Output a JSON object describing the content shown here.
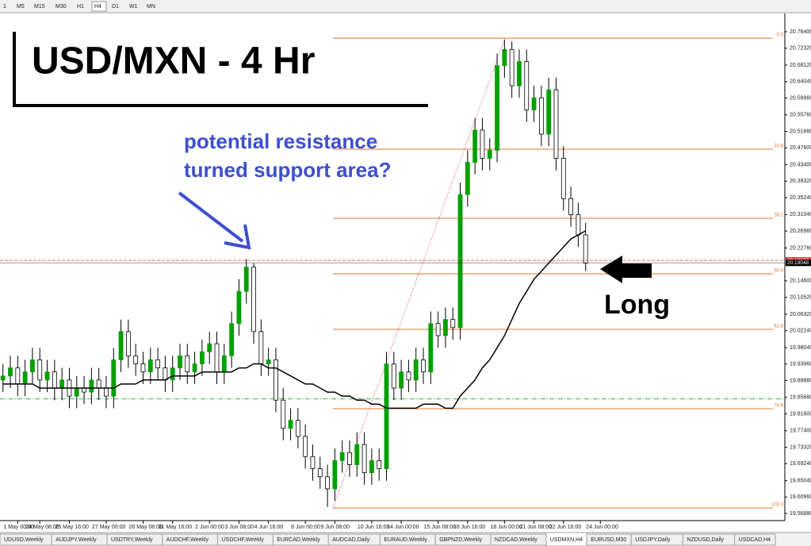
{
  "toolbar": {
    "timeframes": [
      "1",
      "M5",
      "M15",
      "M30",
      "H1",
      "H4",
      "D1",
      "W1",
      "MN"
    ],
    "active": "H4"
  },
  "chart_data": {
    "type": "candlestick",
    "title": "USD/MXN - 4 Hr",
    "annotations": {
      "resistance": [
        "potential resistance",
        "turned support area?"
      ],
      "signal": "Long"
    },
    "xlim": [
      -0.4,
      104.4
    ],
    "ylim": [
      19.5531,
      20.8093
    ],
    "xticks": [
      {
        "value": 2,
        "label": "1 May 00:00"
      },
      {
        "value": 5,
        "label": "24 May 08:00"
      },
      {
        "value": 9,
        "label": "25 May 16:00"
      },
      {
        "value": 14,
        "label": "27 May 00:00"
      },
      {
        "value": 19,
        "label": "28 May 08:00"
      },
      {
        "value": 23,
        "label": "31 May 16:00"
      },
      {
        "value": 28,
        "label": "2 Jun 00:00"
      },
      {
        "value": 32,
        "label": "3 Jun 08:00"
      },
      {
        "value": 36,
        "label": "4 Jun 16:00"
      },
      {
        "value": 41,
        "label": "8 Jun 00:00"
      },
      {
        "value": 45,
        "label": "9 Jun 08:00"
      },
      {
        "value": 50,
        "label": "10 Jun 16:00"
      },
      {
        "value": 54,
        "label": "14 Jun 00:00"
      },
      {
        "value": 59,
        "label": "15 Jun 08:00"
      },
      {
        "value": 63,
        "label": "16 Jun 16:00"
      },
      {
        "value": 68,
        "label": "18 Jun 00:00"
      },
      {
        "value": 72,
        "label": "21 Jun 08:00"
      },
      {
        "value": 76,
        "label": "22 Jun 16:00"
      },
      {
        "value": 81,
        "label": "24 Jun 00:00"
      }
    ],
    "yticks": [
      {
        "value": 20.764,
        "label": "20.76400"
      },
      {
        "value": 20.7232,
        "label": "20.72320"
      },
      {
        "value": 20.6812,
        "label": "20.68120"
      },
      {
        "value": 20.6404,
        "label": "20.64040"
      },
      {
        "value": 20.5996,
        "label": "20.59960"
      },
      {
        "value": 20.5576,
        "label": "20.55760"
      },
      {
        "value": 20.5168,
        "label": "20.51680"
      },
      {
        "value": 20.476,
        "label": "20.47600"
      },
      {
        "value": 20.434,
        "label": "20.43400"
      },
      {
        "value": 20.3932,
        "label": "20.39320"
      },
      {
        "value": 20.3524,
        "label": "20.35240"
      },
      {
        "value": 20.3104,
        "label": "20.31040"
      },
      {
        "value": 20.2696,
        "label": "20.26960"
      },
      {
        "value": 20.2276,
        "label": "20.22760"
      },
      {
        "value": 20.146,
        "label": "20.14600"
      },
      {
        "value": 20.1052,
        "label": "20.10520"
      },
      {
        "value": 20.0632,
        "label": "20.06320"
      },
      {
        "value": 20.0224,
        "label": "20.02240"
      },
      {
        "value": 19.9804,
        "label": "19.98040"
      },
      {
        "value": 19.9396,
        "label": "19.93960"
      },
      {
        "value": 19.8988,
        "label": "19.89880"
      },
      {
        "value": 19.8568,
        "label": "19.85680"
      },
      {
        "value": 19.816,
        "label": "19.81600"
      },
      {
        "value": 19.774,
        "label": "19.77400"
      },
      {
        "value": 19.7332,
        "label": "19.73320"
      },
      {
        "value": 19.6924,
        "label": "19.69240"
      },
      {
        "value": 19.6504,
        "label": "19.65040"
      },
      {
        "value": 19.6096,
        "label": "19.60960"
      },
      {
        "value": 19.5688,
        "label": "19.56880"
      }
    ],
    "open": [
      19.9,
      19.91,
      19.93,
      19.89,
      19.92,
      19.95,
      19.9,
      19.92,
      19.88,
      19.9,
      19.86,
      19.88,
      19.87,
      19.9,
      19.88,
      19.86,
      19.95,
      20.02,
      19.96,
      19.94,
      19.92,
      19.95,
      19.93,
      19.9,
      19.93,
      19.96,
      19.92,
      19.94,
      19.97,
      19.99,
      19.92,
      19.96,
      20.04,
      20.12,
      20.18,
      20.02,
      19.94,
      19.95,
      19.85,
      19.78,
      19.8,
      19.76,
      19.71,
      19.68,
      19.66,
      19.63,
      19.7,
      19.72,
      19.69,
      19.74,
      19.67,
      19.7,
      19.68,
      19.94,
      19.88,
      19.92,
      19.9,
      19.95,
      19.92,
      20.04,
      20.01,
      20.05,
      20.03,
      20.36,
      20.44,
      20.52,
      20.45,
      20.47,
      20.68,
      20.72,
      20.63,
      20.69,
      20.57,
      20.6,
      20.51,
      20.62,
      20.45,
      20.35,
      20.31,
      20.26
    ],
    "high": [
      19.94,
      19.96,
      19.96,
      19.95,
      19.98,
      19.98,
      19.95,
      19.95,
      19.93,
      19.93,
      19.91,
      19.91,
      19.93,
      19.93,
      19.91,
      19.98,
      20.05,
      20.05,
      19.99,
      19.97,
      19.98,
      19.98,
      19.96,
      19.96,
      19.99,
      19.99,
      19.97,
      20.0,
      20.02,
      20.02,
      19.99,
      20.07,
      20.15,
      20.2,
      20.19,
      20.05,
      19.98,
      19.98,
      19.88,
      19.83,
      19.83,
      19.79,
      19.74,
      19.71,
      19.69,
      19.73,
      19.75,
      19.75,
      19.77,
      19.77,
      19.73,
      19.73,
      19.97,
      19.97,
      19.95,
      19.95,
      19.98,
      19.98,
      20.07,
      20.07,
      20.08,
      20.08,
      20.39,
      20.47,
      20.55,
      20.55,
      20.5,
      20.71,
      20.745,
      20.74,
      20.72,
      20.72,
      20.63,
      20.63,
      20.65,
      20.65,
      20.48,
      20.38,
      20.34,
      20.29
    ],
    "low": [
      19.87,
      19.88,
      19.86,
      19.86,
      19.89,
      19.87,
      19.87,
      19.85,
      19.85,
      19.83,
      19.83,
      19.84,
      19.84,
      19.85,
      19.83,
      19.83,
      19.92,
      19.93,
      19.91,
      19.89,
      19.89,
      19.9,
      19.87,
      19.87,
      19.9,
      19.89,
      19.89,
      19.91,
      19.94,
      19.89,
      19.89,
      19.93,
      20.01,
      20.09,
      19.99,
      19.91,
      19.91,
      19.82,
      19.75,
      19.75,
      19.73,
      19.68,
      19.65,
      19.63,
      19.585,
      19.6,
      19.67,
      19.66,
      19.66,
      19.64,
      19.64,
      19.65,
      19.65,
      19.85,
      19.85,
      19.87,
      19.87,
      19.89,
      19.89,
      19.98,
      19.98,
      20.0,
      20.0,
      20.33,
      20.41,
      20.42,
      20.42,
      20.44,
      20.65,
      20.6,
      20.6,
      20.54,
      20.54,
      20.48,
      20.48,
      20.42,
      20.32,
      20.28,
      20.23,
      20.17
    ],
    "close": [
      19.91,
      19.93,
      19.89,
      19.92,
      19.95,
      19.9,
      19.92,
      19.88,
      19.9,
      19.86,
      19.88,
      19.87,
      19.9,
      19.88,
      19.86,
      19.95,
      20.02,
      19.96,
      19.94,
      19.92,
      19.95,
      19.93,
      19.9,
      19.93,
      19.96,
      19.92,
      19.94,
      19.97,
      19.99,
      19.92,
      19.96,
      20.04,
      20.12,
      20.18,
      20.02,
      19.94,
      19.95,
      19.85,
      19.78,
      19.8,
      19.76,
      19.71,
      19.68,
      19.66,
      19.63,
      19.7,
      19.72,
      19.69,
      19.74,
      19.67,
      19.7,
      19.68,
      19.94,
      19.88,
      19.92,
      19.9,
      19.95,
      19.92,
      20.04,
      20.01,
      20.05,
      20.03,
      20.36,
      20.44,
      20.52,
      20.45,
      20.47,
      20.68,
      20.72,
      20.63,
      20.69,
      20.57,
      20.6,
      20.51,
      20.62,
      20.45,
      20.35,
      20.31,
      20.26,
      20.19
    ],
    "moving_average": {
      "color": "#000000",
      "values": [
        19.89,
        19.89,
        19.89,
        19.89,
        19.89,
        19.88,
        19.88,
        19.88,
        19.88,
        19.88,
        19.88,
        19.88,
        19.88,
        19.88,
        19.88,
        19.88,
        19.89,
        19.89,
        19.89,
        19.9,
        19.9,
        19.9,
        19.9,
        19.91,
        19.91,
        19.91,
        19.91,
        19.92,
        19.92,
        19.92,
        19.92,
        19.92,
        19.93,
        19.93,
        19.94,
        19.94,
        19.93,
        19.93,
        19.92,
        19.91,
        19.9,
        19.89,
        19.89,
        19.88,
        19.87,
        19.87,
        19.86,
        19.86,
        19.85,
        19.85,
        19.84,
        19.84,
        19.83,
        19.83,
        19.83,
        19.83,
        19.83,
        19.84,
        19.84,
        19.84,
        19.83,
        19.83,
        19.86,
        19.88,
        19.9,
        19.93,
        19.95,
        19.98,
        20.01,
        20.05,
        20.09,
        20.12,
        20.15,
        20.17,
        20.19,
        20.21,
        20.23,
        20.25,
        20.26,
        20.27
      ]
    },
    "bull_color": "#00a000",
    "bear_color": "#ffffff",
    "fib_color": "#e07a2e",
    "fib_levels": [
      {
        "value": 20.748,
        "label": "0.0"
      },
      {
        "value": 20.4726,
        "label": "23.6"
      },
      {
        "value": 20.3013,
        "label": "38.2"
      },
      {
        "value": 20.1635,
        "label": "50.0"
      },
      {
        "value": 20.0257,
        "label": "61.8"
      },
      {
        "value": 19.8288,
        "label": "78.6"
      },
      {
        "value": 19.5827,
        "label": "100.0"
      }
    ],
    "price_lines": [
      {
        "value": 20.19677,
        "label": "20.19677",
        "color": "#e03030"
      },
      {
        "value": 20.19048,
        "label": "20.19048",
        "color": "#000000"
      }
    ],
    "support_line": {
      "value": 19.853,
      "color": "#3cb043"
    }
  },
  "tabs": [
    "UDUSD,Weekly",
    "AUDJPY,Weekly",
    "USDTRY,Weekly",
    "AUDCHF,Weekly",
    "USDCHF,Weekly",
    "EURCAD,Weekly",
    "AUDCAD,Daily",
    "EURAUD,Weekly",
    "GBPNZD,Weekly",
    "NZDCAD,Weekly",
    "USDMXN,H4",
    "EURUSD,M30",
    "USDJPY,Daily",
    "NZDUSD,Daily",
    "USDCAD,H4"
  ],
  "active_tab": "USDMXN,H4"
}
